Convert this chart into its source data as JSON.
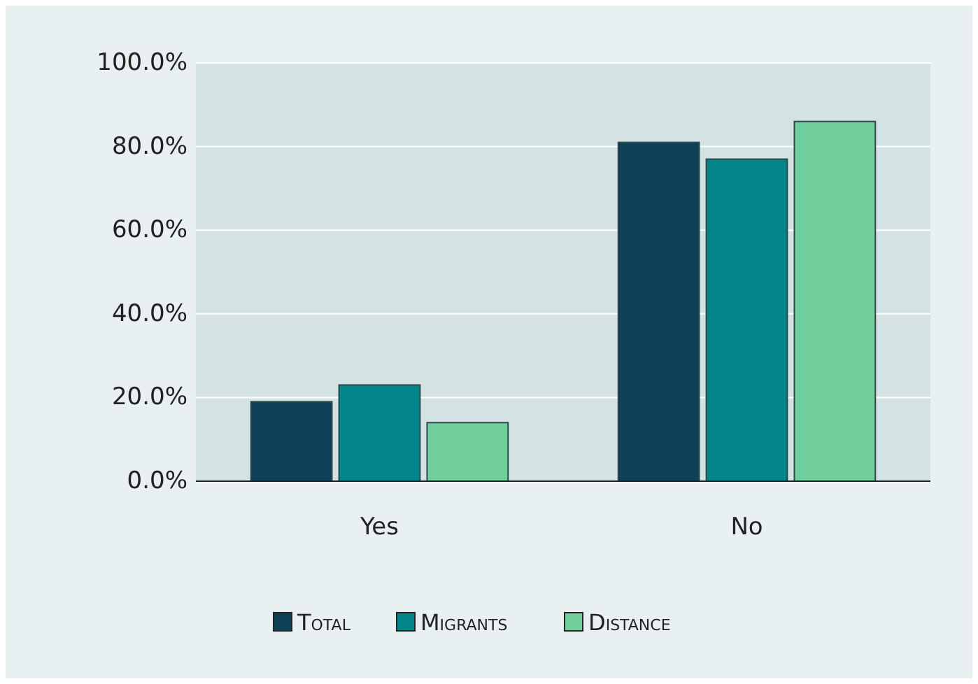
{
  "chart_data": {
    "type": "bar",
    "categories": [
      "Yes",
      "No"
    ],
    "series": [
      {
        "name": "Total",
        "color": "#0e4058",
        "values": [
          19,
          81
        ]
      },
      {
        "name": "Migrants",
        "color": "#03868a",
        "values": [
          23,
          77
        ]
      },
      {
        "name": "Distance",
        "color": "#71cf9e",
        "values": [
          14,
          86
        ]
      }
    ],
    "ylim": [
      0,
      100
    ],
    "yticks": [
      {
        "value": 0,
        "label": "0.0%"
      },
      {
        "value": 20,
        "label": "20.0%"
      },
      {
        "value": 40,
        "label": "40.0%"
      },
      {
        "value": 60,
        "label": "60.0%"
      },
      {
        "value": 80,
        "label": "80.0%"
      },
      {
        "value": 100,
        "label": "100.0%"
      }
    ],
    "grid": "y",
    "legend": "bottom"
  }
}
